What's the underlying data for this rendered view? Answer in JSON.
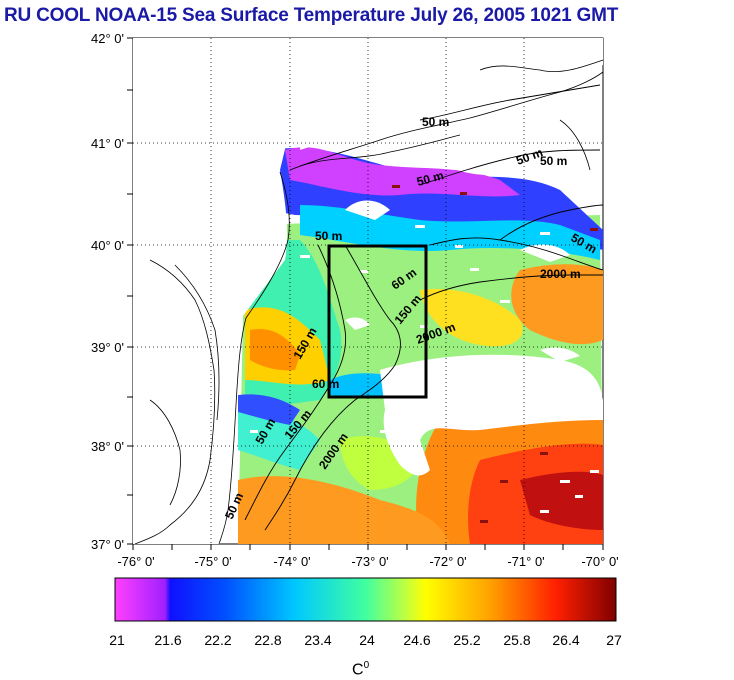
{
  "title": "RU COOL  NOAA-15 Sea Surface Temperature July 26, 2005 1021 GMT",
  "map": {
    "lat_labels": [
      "42° 0'",
      "41° 0'",
      "40° 0'",
      "39° 0'",
      "38° 0'",
      "37° 0'"
    ],
    "lon_labels": [
      "-76° 0'",
      "-75° 0'",
      "-74° 0'",
      "-73° 0'",
      "-72° 0'",
      "-71° 0'",
      "-70° 0'"
    ],
    "lat_range": [
      37,
      42
    ],
    "lon_range": [
      -76,
      -70
    ],
    "isobath_labels": [
      "50 m",
      "50 m",
      "50 m",
      "50 m",
      "50 m",
      "50 m",
      "60 m",
      "150 m",
      "150 m",
      "2000 m",
      "2000 m",
      "2000 m",
      "50 m",
      "150 m",
      "50 m",
      "60 m"
    ],
    "study_box": {
      "lon": [
        -73.4,
        -72.4
      ],
      "lat": [
        38.5,
        40.0
      ]
    }
  },
  "colorbar": {
    "ticks": [
      "21",
      "21.6",
      "22.2",
      "22.8",
      "23.4",
      "24",
      "24.6",
      "25.2",
      "25.8",
      "26.4",
      "27"
    ],
    "unit_base": "C",
    "unit_sup": "0",
    "colors": [
      "#ff30ff",
      "#c030ff",
      "#2020ff",
      "#0060ff",
      "#00b0ff",
      "#00ffff",
      "#60ff90",
      "#c0ff40",
      "#ffff00",
      "#ffc000",
      "#ff8000",
      "#ff3000",
      "#c00000",
      "#800000"
    ]
  },
  "chart_data": {
    "type": "heatmap",
    "title": "RU COOL  NOAA-15 Sea Surface Temperature July 26, 2005 1021 GMT",
    "xlabel": "",
    "ylabel": "",
    "x_range_deg": [
      -76,
      -70
    ],
    "y_range_deg": [
      37,
      42
    ],
    "color_range": [
      21,
      27
    ],
    "color_unit": "C0"
  }
}
